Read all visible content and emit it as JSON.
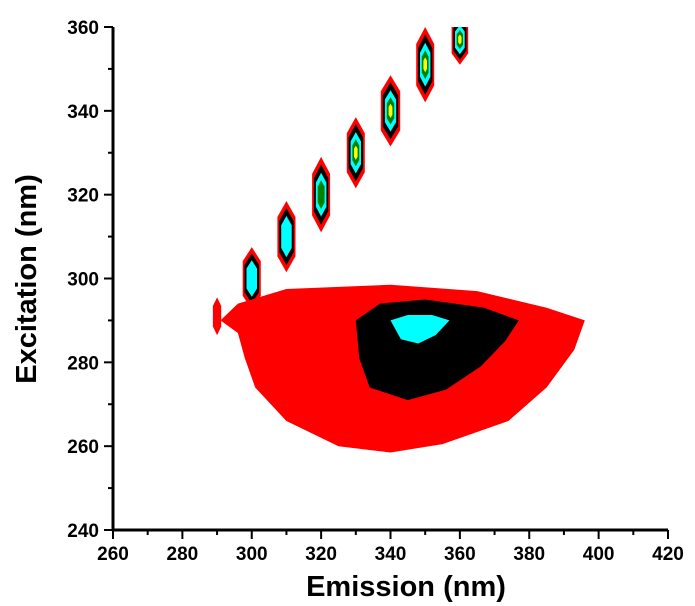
{
  "chart_data": {
    "type": "contour",
    "xlabel": "Emission (nm)",
    "ylabel": "Excitation (nm)",
    "xlim": [
      260,
      420
    ],
    "ylim": [
      240,
      360
    ],
    "x_major_ticks": [
      260,
      280,
      300,
      320,
      340,
      360,
      380,
      400,
      420
    ],
    "y_major_ticks": [
      240,
      260,
      280,
      300,
      320,
      340,
      360
    ],
    "x_tick_labels": [
      "260",
      "280",
      "300",
      "320",
      "340",
      "360",
      "380",
      "400",
      "420"
    ],
    "y_tick_labels": [
      "240",
      "260",
      "280",
      "300",
      "320",
      "340",
      "360"
    ],
    "level_colors": [
      "#ff0000",
      "#000000",
      "#00ffff",
      "#008000",
      "#ffff00"
    ],
    "peaks": [
      {
        "name": "rayleigh-scatter-290",
        "center": [
          290,
          291
        ],
        "half_width": [
          1.2,
          4.5
        ],
        "levels": 1
      },
      {
        "name": "rayleigh-scatter-300",
        "center": [
          300,
          300
        ],
        "half_width": [
          2.6,
          7.5
        ],
        "levels": 3
      },
      {
        "name": "rayleigh-scatter-310",
        "center": [
          310,
          310
        ],
        "half_width": [
          2.6,
          8.5
        ],
        "levels": 3
      },
      {
        "name": "rayleigh-scatter-320",
        "center": [
          320,
          320
        ],
        "half_width": [
          2.6,
          9.0
        ],
        "levels": 4
      },
      {
        "name": "rayleigh-scatter-330",
        "center": [
          330,
          330
        ],
        "half_width": [
          2.6,
          8.5
        ],
        "levels": 5
      },
      {
        "name": "rayleigh-scatter-340",
        "center": [
          340,
          340
        ],
        "half_width": [
          2.8,
          8.5
        ],
        "levels": 5
      },
      {
        "name": "rayleigh-scatter-350",
        "center": [
          350,
          351
        ],
        "half_width": [
          2.6,
          9.0
        ],
        "levels": 5
      },
      {
        "name": "rayleigh-scatter-360",
        "center": [
          360,
          357
        ],
        "half_width": [
          2.4,
          6.0
        ],
        "levels": 5
      }
    ],
    "fluorescence_peak": {
      "center": [
        345,
        290
      ],
      "contours": [
        {
          "level": 1,
          "color": "#ff0000",
          "polygon": [
            [
              291,
              290
            ],
            [
              296,
              294
            ],
            [
              310,
              297.5
            ],
            [
              340,
              298.5
            ],
            [
              365,
              297
            ],
            [
              385,
              293
            ],
            [
              396,
              290
            ],
            [
              393,
              283
            ],
            [
              385,
              274
            ],
            [
              374,
              266
            ],
            [
              355,
              260.5
            ],
            [
              340,
              258.5
            ],
            [
              325,
              260
            ],
            [
              310,
              266
            ],
            [
              301,
              274
            ],
            [
              298,
              281
            ],
            [
              296,
              287
            ]
          ]
        },
        {
          "level": 2,
          "color": "#000000",
          "polygon": [
            [
              330,
              290
            ],
            [
              337,
              294
            ],
            [
              350,
              295
            ],
            [
              367,
              293
            ],
            [
              377,
              290
            ],
            [
              373,
              285
            ],
            [
              366,
              279
            ],
            [
              356,
              273.5
            ],
            [
              345,
              271
            ],
            [
              334,
              274
            ],
            [
              331,
              281
            ]
          ]
        },
        {
          "level": 3,
          "color": "#00ffff",
          "polygon": [
            [
              340,
              290
            ],
            [
              345,
              291.3
            ],
            [
              352,
              291.3
            ],
            [
              357,
              290
            ],
            [
              353,
              286.5
            ],
            [
              348,
              284.5
            ],
            [
              343,
              285.5
            ]
          ]
        }
      ]
    }
  }
}
